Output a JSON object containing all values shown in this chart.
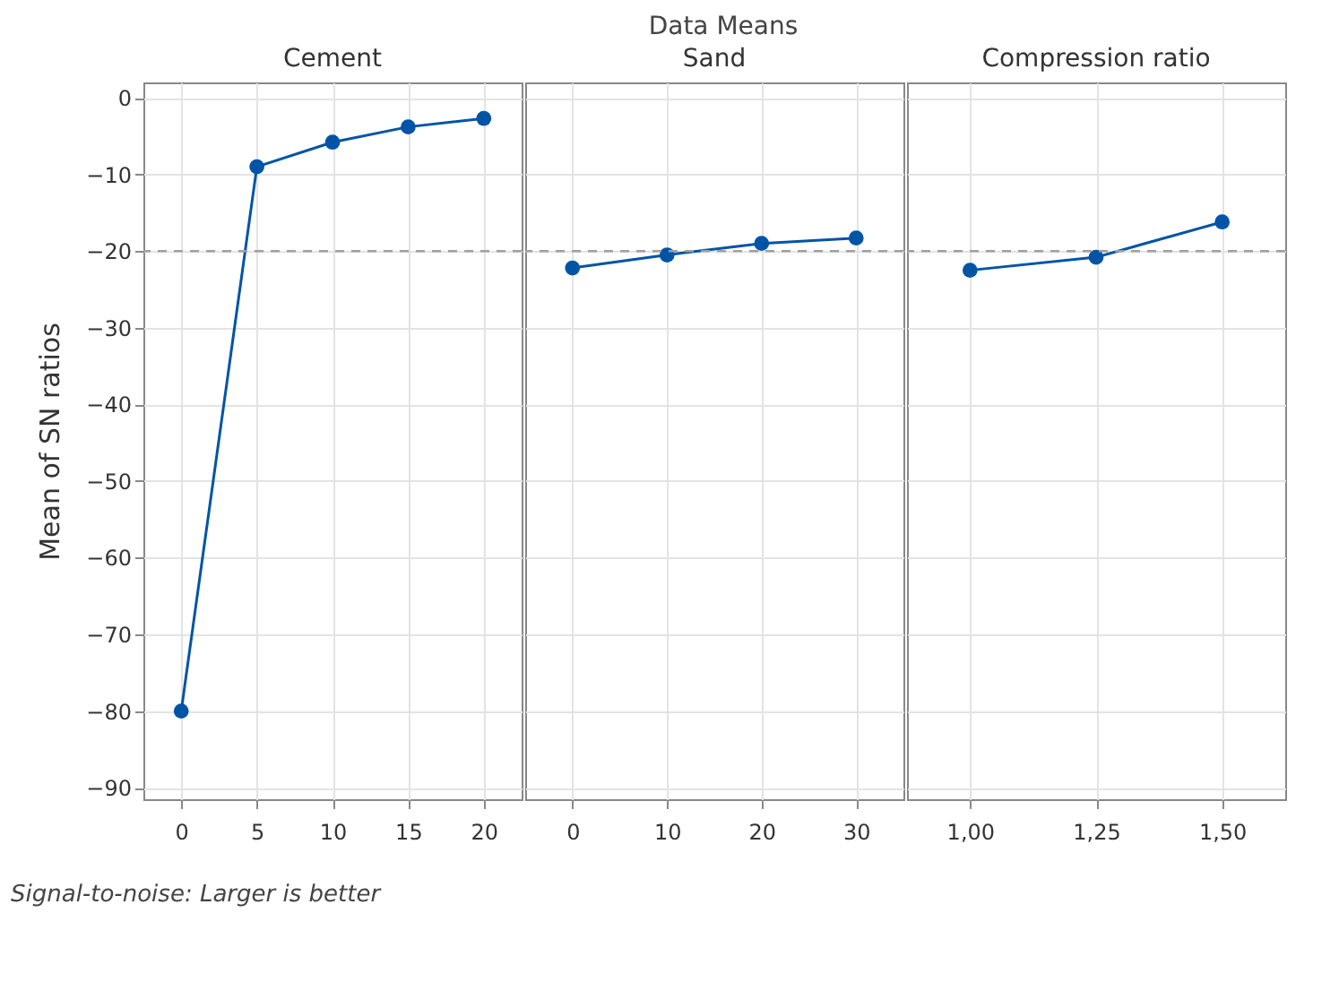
{
  "chart_data": [
    {
      "type": "line",
      "xlabel": "Cement",
      "ylabel": "Mean of SN ratios",
      "annotations": [
        "Signal-to-noise: Larger is better"
      ],
      "categories": [
        "0",
        "5",
        "10",
        "15",
        "20"
      ],
      "series": [
        {
          "color": "#0054a6",
          "values": [
            -80,
            -9.0,
            -5.8,
            -3.8,
            -2.7
          ]
        }
      ],
      "ylim": [
        -91.5,
        2
      ],
      "yticks": [
        -90,
        -80,
        -70,
        -60,
        -50,
        -40,
        -30,
        -20,
        -10,
        0
      ],
      "grid": true,
      "marker": "circle",
      "line_style": "solid",
      "ref_lines": [
        {
          "axis": "y",
          "value": -20,
          "color": "#a0a0a0",
          "line_style": "dashed"
        }
      ]
    },
    {
      "type": "line",
      "title": "Data Means",
      "xlabel": "Sand",
      "categories": [
        "0",
        "10",
        "20",
        "30"
      ],
      "series": [
        {
          "color": "#0054a6",
          "values": [
            -22.2,
            -20.5,
            -19.0,
            -18.3
          ]
        }
      ],
      "ylim": [
        -91.5,
        2
      ],
      "yticks": [
        -90,
        -80,
        -70,
        -60,
        -50,
        -40,
        -30,
        -20,
        -10,
        0
      ],
      "tick_labels": "x",
      "grid": true,
      "marker": "circle",
      "line_style": "solid",
      "ref_lines": [
        {
          "axis": "y",
          "value": -20,
          "color": "#a0a0a0",
          "line_style": "dashed"
        }
      ]
    },
    {
      "type": "line",
      "xlabel": "Compression ratio",
      "categories": [
        "1,00",
        "1,25",
        "1,50"
      ],
      "series": [
        {
          "color": "#0054a6",
          "values": [
            -22.5,
            -20.8,
            -16.2
          ]
        }
      ],
      "ylim": [
        -91.5,
        2
      ],
      "yticks": [
        -90,
        -80,
        -70,
        -60,
        -50,
        -40,
        -30,
        -20,
        -10,
        0
      ],
      "tick_labels": "x",
      "grid": true,
      "marker": "circle",
      "line_style": "solid",
      "ref_lines": [
        {
          "axis": "y",
          "value": -20,
          "color": "#a0a0a0",
          "line_style": "dashed"
        }
      ]
    }
  ]
}
